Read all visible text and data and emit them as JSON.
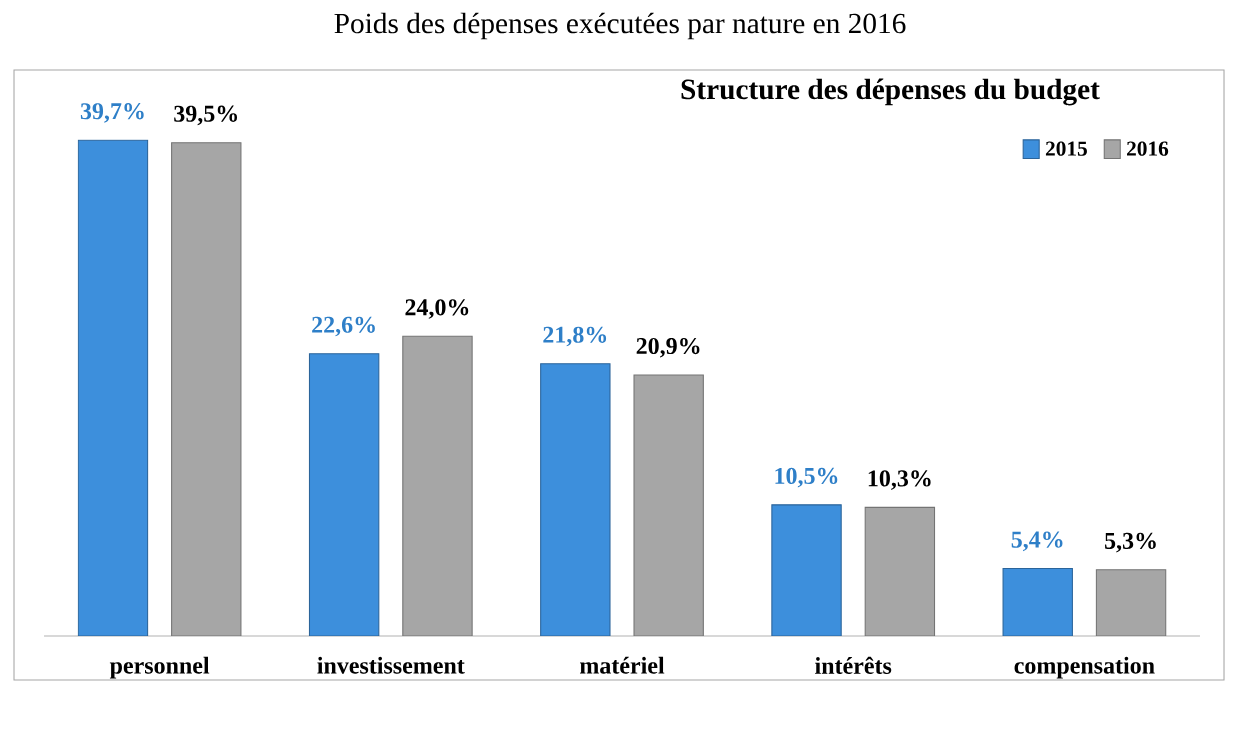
{
  "chart_data": {
    "type": "bar",
    "title": "Poids des dépenses exécutées par nature en 2016",
    "subtitle": "Structure des dépenses du budget",
    "categories": [
      "personnel",
      "investissement",
      "matériel",
      "intérêts",
      "compensation"
    ],
    "series": [
      {
        "name": "2015",
        "color": "#3d8fdc",
        "values": [
          39.7,
          22.6,
          21.8,
          10.5,
          5.4
        ],
        "value_labels": [
          "39,7%",
          "22,6%",
          "21,8%",
          "10,5%",
          "5,4%"
        ]
      },
      {
        "name": "2016",
        "color": "#a6a6a6",
        "values": [
          39.5,
          24.0,
          20.9,
          10.3,
          5.3
        ],
        "value_labels": [
          "39,5%",
          "24,0%",
          "20,9%",
          "10,3%",
          "5,3%"
        ]
      }
    ],
    "ylim": [
      0,
      45
    ],
    "tick_labels": "x",
    "legend": "top right"
  }
}
